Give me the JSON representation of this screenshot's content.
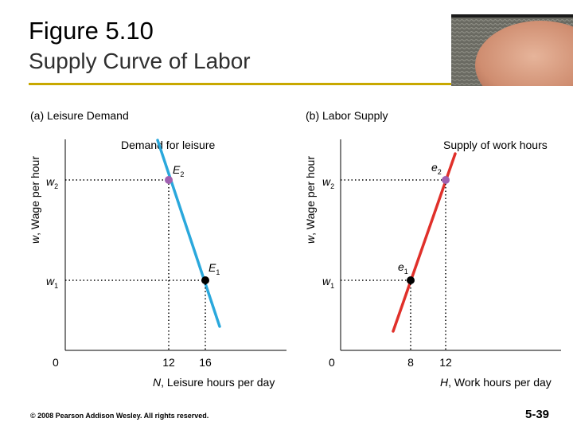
{
  "slide": {
    "title": "Figure 5.10",
    "subtitle": "Supply Curve of Labor",
    "copyright": "© 2008 Pearson Addison Wesley. All rights reserved.",
    "page_number": "5-39"
  },
  "colors": {
    "rule": "#c8a800",
    "demand_line": "#2aa8dc",
    "supply_line": "#e0302a",
    "point_upper": "#a060b0",
    "point_lower": "#000000"
  },
  "chart_data": [
    {
      "type": "line",
      "panel_title": "(a) Leisure Demand",
      "xlabel": "N, Leisure hours per day",
      "ylabel": "w, Wage per hour",
      "origin_label": "0",
      "x_ticks": [
        12,
        16
      ],
      "y_ticks": [
        {
          "value": "w2",
          "label": "w",
          "sub": "2"
        },
        {
          "value": "w1",
          "label": "w",
          "sub": "1"
        }
      ],
      "series": [
        {
          "name": "Demand for leisure",
          "points": [
            {
              "x": 12,
              "y": "w2"
            },
            {
              "x": 16,
              "y": "w1"
            }
          ]
        }
      ],
      "annotations": [
        {
          "text": "E",
          "sub": "2",
          "x": 12,
          "y": "w2"
        },
        {
          "text": "E",
          "sub": "1",
          "x": 16,
          "y": "w1"
        }
      ]
    },
    {
      "type": "line",
      "panel_title": "(b) Labor Supply",
      "xlabel": "H, Work hours per day",
      "ylabel": "w, Wage per hour",
      "origin_label": "0",
      "x_ticks": [
        8,
        12
      ],
      "y_ticks": [
        {
          "value": "w2",
          "label": "w",
          "sub": "2"
        },
        {
          "value": "w1",
          "label": "w",
          "sub": "1"
        }
      ],
      "series": [
        {
          "name": "Supply of work hours",
          "points": [
            {
              "x": 8,
              "y": "w1"
            },
            {
              "x": 12,
              "y": "w2"
            }
          ]
        }
      ],
      "annotations": [
        {
          "text": "e",
          "sub": "2",
          "x": 12,
          "y": "w2"
        },
        {
          "text": "e",
          "sub": "1",
          "x": 8,
          "y": "w1"
        }
      ]
    }
  ]
}
